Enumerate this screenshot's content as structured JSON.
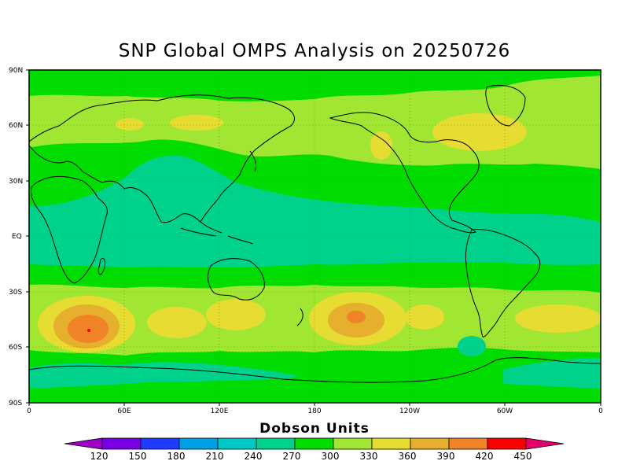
{
  "title": "SNP Global OMPS Analysis on 20250726",
  "colorbar": {
    "title": "Dobson Units",
    "levels": [
      "120",
      "150",
      "180",
      "210",
      "240",
      "270",
      "300",
      "330",
      "360",
      "390",
      "420",
      "450"
    ],
    "colors": [
      "#a000c8",
      "#7800e6",
      "#1e3cff",
      "#00a0e6",
      "#00c8c8",
      "#00d28c",
      "#00dc00",
      "#a0e632",
      "#e6dc32",
      "#e6af2d",
      "#f08228",
      "#fa0000",
      "#e6006e"
    ]
  },
  "axes": {
    "y_ticks": [
      "90N",
      "60N",
      "30N",
      "EQ",
      "30S",
      "60S",
      "90S"
    ],
    "x_ticks": [
      "0",
      "60E",
      "120E",
      "180",
      "120W",
      "60W",
      "0"
    ]
  },
  "map_colors": {
    "c270": "#00d28c",
    "c300": "#00dc00",
    "c330": "#a0e632",
    "c360": "#e6dc32",
    "c390": "#e6af2d",
    "c420": "#f08228",
    "c450": "#fa0000"
  }
}
